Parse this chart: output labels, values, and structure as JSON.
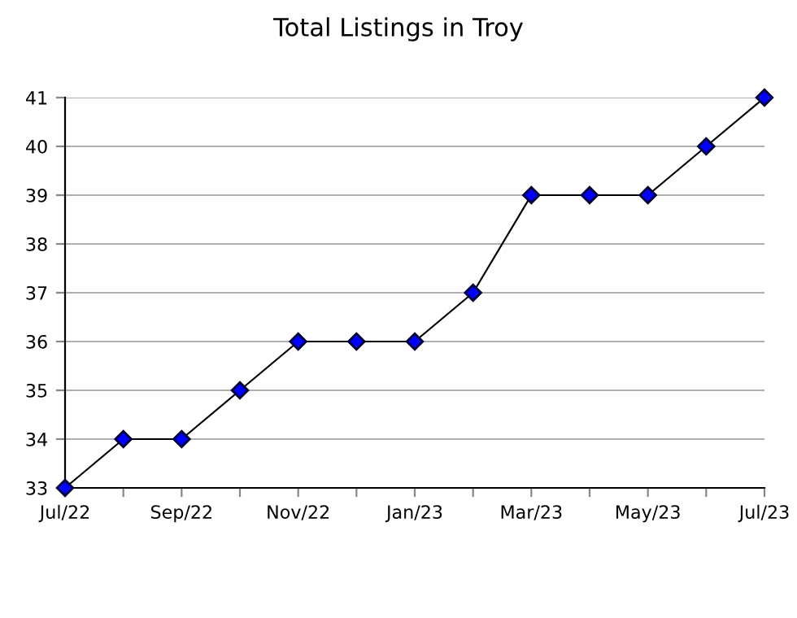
{
  "chart_data": {
    "type": "line",
    "title": "Total Listings in Troy",
    "categories": [
      "Jul/22",
      null,
      "Sep/22",
      null,
      "Nov/22",
      null,
      "Jan/23",
      null,
      "Mar/23",
      null,
      "May/23",
      null,
      "Jul/23"
    ],
    "series": [
      {
        "color": "#0000ff",
        "values": [
          33,
          34,
          34,
          35,
          36,
          36,
          36,
          37,
          39,
          39,
          39,
          40,
          41
        ]
      }
    ],
    "ylim": [
      33,
      41
    ],
    "yticks": [
      33,
      34,
      35,
      36,
      37,
      38,
      39,
      40,
      41
    ],
    "grid": "y",
    "marker": "diamond",
    "line_style": "solid",
    "legend": false
  }
}
